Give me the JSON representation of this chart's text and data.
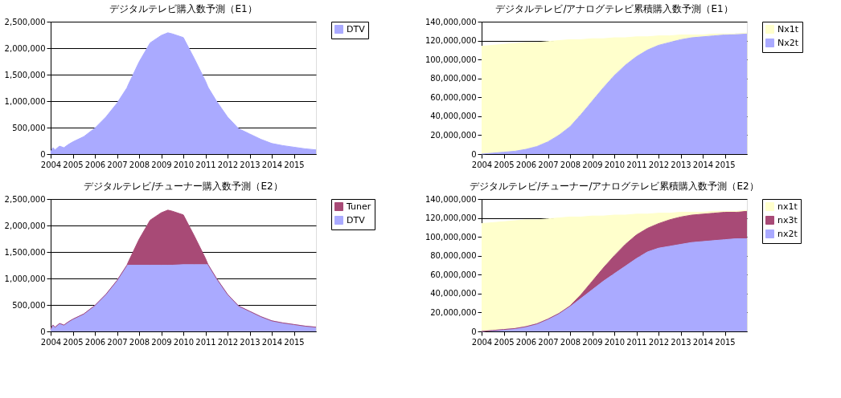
{
  "chart_data": [
    {
      "type": "area",
      "title": "デジタルテレビ購入数予測（E1）",
      "stacked": true,
      "grid": "y",
      "legend": "right",
      "x": [
        2004,
        2004.1,
        2004.2,
        2004.4,
        2004.6,
        2004.8,
        2005,
        2005.5,
        2006,
        2006.5,
        2007,
        2007.45,
        2007.5,
        2008,
        2008.5,
        2009,
        2009.3,
        2009.5,
        2010,
        2010.5,
        2011,
        2011.12,
        2011.5,
        2012,
        2012.5,
        2013,
        2013.5,
        2014,
        2014.5,
        2015,
        2015.5,
        2016
      ],
      "series": [
        {
          "name": "DTV",
          "color": "#aaaaff",
          "values": [
            40000,
            120000,
            80000,
            150000,
            120000,
            180000,
            230000,
            330000,
            490000,
            700000,
            960000,
            1250000,
            1300000,
            1740000,
            2100000,
            2240000,
            2290000,
            2270000,
            2200000,
            1800000,
            1380000,
            1260000,
            1000000,
            700000,
            480000,
            380000,
            280000,
            200000,
            160000,
            130000,
            100000,
            80000
          ]
        }
      ],
      "xlim": [
        2004,
        2016
      ],
      "xticks": [
        2004,
        2005,
        2006,
        2007,
        2008,
        2009,
        2010,
        2011,
        2012,
        2013,
        2014,
        2015
      ],
      "ylim": [
        0,
        2500000
      ],
      "yticks": [
        0,
        {
          "value": 500000,
          "label": "500,000"
        },
        {
          "value": 1000000,
          "label": "1,000,000"
        },
        {
          "value": 1500000,
          "label": "1,500,000"
        },
        {
          "value": 2000000,
          "label": "2,000,000"
        },
        {
          "value": 2500000,
          "label": "2,500,000"
        }
      ]
    },
    {
      "type": "area",
      "title": "デジタルテレビ/アナログテレビ累積購入数予測（E1）",
      "stacked": true,
      "grid": "y",
      "legend": "right",
      "x": [
        2004,
        2004.5,
        2005,
        2005.5,
        2006,
        2006.5,
        2007,
        2007.5,
        2008,
        2008.5,
        2009,
        2009.5,
        2010,
        2010.5,
        2011,
        2011.5,
        2012,
        2012.5,
        2013,
        2013.5,
        2014,
        2014.5,
        2015,
        2015.5,
        2016
      ],
      "series": [
        {
          "name": "Nx2t",
          "color": "#aaaaff",
          "values": [
            0,
            1000000,
            2000000,
            3000000,
            5000000,
            8000000,
            13000000,
            20000000,
            29000000,
            42000000,
            56000000,
            70000000,
            83000000,
            94000000,
            103000000,
            110000000,
            115000000,
            118000000,
            121000000,
            123000000,
            124000000,
            125000000,
            126000000,
            127000000,
            127000000
          ]
        },
        {
          "name": "Nx1t",
          "color": "#ffffcc",
          "values": [
            114000000,
            114000000,
            114000000,
            114000000,
            113000000,
            110000000,
            106000000,
            100000000,
            92000000,
            79000000,
            66000000,
            52000000,
            40000000,
            29000000,
            21000000,
            14000000,
            10000000,
            7000000,
            5000000,
            3000000,
            2000000,
            2000000,
            1000000,
            0,
            1000000
          ]
        }
      ],
      "xlim": [
        2004,
        2016
      ],
      "xticks": [
        2004,
        2005,
        2006,
        2007,
        2008,
        2009,
        2010,
        2011,
        2012,
        2013,
        2014,
        2015
      ],
      "ylim": [
        0,
        140000000
      ],
      "yticks": [
        0,
        {
          "value": 20000000,
          "label": "20,000,000"
        },
        {
          "value": 40000000,
          "label": "40,000,000"
        },
        {
          "value": 60000000,
          "label": "60,000,000"
        },
        {
          "value": 80000000,
          "label": "80,000,000"
        },
        {
          "value": 100000000,
          "label": "100,000,000"
        },
        {
          "value": 120000000,
          "label": "120,000,000"
        },
        {
          "value": 140000000,
          "label": "140,000,000"
        }
      ]
    },
    {
      "type": "area",
      "title": "デジタルテレビ/チューナー購入数予測（E2）",
      "stacked": true,
      "grid": "y",
      "legend": "right",
      "x": [
        2004,
        2004.1,
        2004.2,
        2004.4,
        2004.6,
        2004.8,
        2005,
        2005.5,
        2006,
        2006.5,
        2007,
        2007.45,
        2007.5,
        2008,
        2008.5,
        2009,
        2009.3,
        2009.5,
        2010,
        2010.5,
        2011,
        2011.12,
        2011.5,
        2012,
        2012.5,
        2013,
        2013.5,
        2014,
        2014.5,
        2015,
        2015.5,
        2016
      ],
      "series": [
        {
          "name": "DTV",
          "color": "#aaaaff",
          "values": [
            40000,
            120000,
            80000,
            150000,
            120000,
            180000,
            230000,
            330000,
            490000,
            700000,
            960000,
            1250000,
            1250000,
            1250000,
            1250000,
            1250000,
            1250000,
            1250000,
            1260000,
            1260000,
            1260000,
            1260000,
            1000000,
            700000,
            480000,
            380000,
            280000,
            200000,
            160000,
            130000,
            100000,
            80000
          ]
        },
        {
          "name": "Tuner",
          "color": "#a84a76",
          "values": [
            0,
            0,
            0,
            0,
            0,
            0,
            0,
            0,
            0,
            0,
            0,
            0,
            50000,
            490000,
            850000,
            990000,
            1040000,
            1020000,
            940000,
            540000,
            120000,
            0,
            0,
            0,
            0,
            0,
            0,
            0,
            0,
            0,
            0,
            0
          ]
        }
      ],
      "xlim": [
        2004,
        2016
      ],
      "xticks": [
        2004,
        2005,
        2006,
        2007,
        2008,
        2009,
        2010,
        2011,
        2012,
        2013,
        2014,
        2015
      ],
      "ylim": [
        0,
        2500000
      ],
      "yticks": [
        0,
        {
          "value": 500000,
          "label": "500,000"
        },
        {
          "value": 1000000,
          "label": "1,000,000"
        },
        {
          "value": 1500000,
          "label": "1,500,000"
        },
        {
          "value": 2000000,
          "label": "2,000,000"
        },
        {
          "value": 2500000,
          "label": "2,500,000"
        }
      ]
    },
    {
      "type": "area",
      "title": "デジタルテレビ/チューナー/アナログテレビ累積購入数予測（E2）",
      "stacked": true,
      "grid": "y",
      "legend": "right",
      "x": [
        2004,
        2004.5,
        2005,
        2005.5,
        2006,
        2006.5,
        2007,
        2007.5,
        2008,
        2008.5,
        2009,
        2009.5,
        2010,
        2010.5,
        2011,
        2011.5,
        2012,
        2012.5,
        2013,
        2013.5,
        2014,
        2014.5,
        2015,
        2015.5,
        2016
      ],
      "series": [
        {
          "name": "nx2t",
          "color": "#aaaaff",
          "values": [
            0,
            1000000,
            2000000,
            3000000,
            5000000,
            8000000,
            13000000,
            19000000,
            26000000,
            35000000,
            44000000,
            53000000,
            61000000,
            69000000,
            77000000,
            84000000,
            88000000,
            90000000,
            92000000,
            94000000,
            95000000,
            96000000,
            97000000,
            98000000,
            98000000
          ]
        },
        {
          "name": "nx3t",
          "color": "#a84a76",
          "values": [
            0,
            0,
            0,
            0,
            0,
            0,
            0,
            0,
            1000000,
            4000000,
            9000000,
            14000000,
            19000000,
            23000000,
            25000000,
            25000000,
            26000000,
            28000000,
            29000000,
            29000000,
            29000000,
            29000000,
            29000000,
            28000000,
            29000000
          ]
        },
        {
          "name": "nx1t",
          "color": "#ffffcc",
          "values": [
            114000000,
            114000000,
            114000000,
            114000000,
            113000000,
            110000000,
            106000000,
            101000000,
            94000000,
            82000000,
            69000000,
            55000000,
            43000000,
            31000000,
            22000000,
            15000000,
            11000000,
            7000000,
            5000000,
            3000000,
            2000000,
            2000000,
            1000000,
            1000000,
            1000000
          ]
        }
      ],
      "xlim": [
        2004,
        2016
      ],
      "xticks": [
        2004,
        2005,
        2006,
        2007,
        2008,
        2009,
        2010,
        2011,
        2012,
        2013,
        2014,
        2015
      ],
      "ylim": [
        0,
        140000000
      ],
      "yticks": [
        0,
        {
          "value": 20000000,
          "label": "20,000,000"
        },
        {
          "value": 40000000,
          "label": "40,000,000"
        },
        {
          "value": 60000000,
          "label": "60,000,000"
        },
        {
          "value": 80000000,
          "label": "80,000,000"
        },
        {
          "value": 100000000,
          "label": "100,000,000"
        },
        {
          "value": 120000000,
          "label": "120,000,000"
        },
        {
          "value": 140000000,
          "label": "140,000,000"
        }
      ]
    }
  ]
}
